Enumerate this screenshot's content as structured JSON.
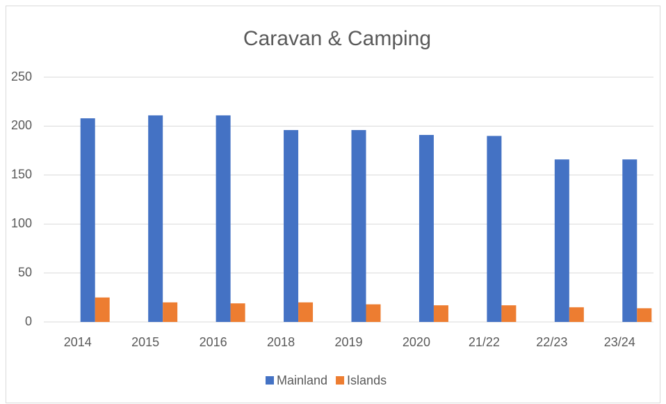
{
  "chart_data": {
    "type": "bar",
    "title": "Caravan & Camping",
    "categories": [
      "2014",
      "2015",
      "2016",
      "2018",
      "2019",
      "2020",
      "21/22",
      "22/23",
      "23/24"
    ],
    "series": [
      {
        "name": "Mainland",
        "color": "#4472c4",
        "values": [
          208,
          211,
          211,
          196,
          196,
          191,
          190,
          166,
          166
        ]
      },
      {
        "name": "Islands",
        "color": "#ed7d31",
        "values": [
          25,
          20,
          19,
          20,
          18,
          17,
          17,
          15,
          14
        ]
      }
    ],
    "ylim": [
      0,
      250
    ],
    "yticks": [
      0,
      50,
      100,
      150,
      200,
      250
    ],
    "grid": true,
    "legend": "bottom"
  }
}
